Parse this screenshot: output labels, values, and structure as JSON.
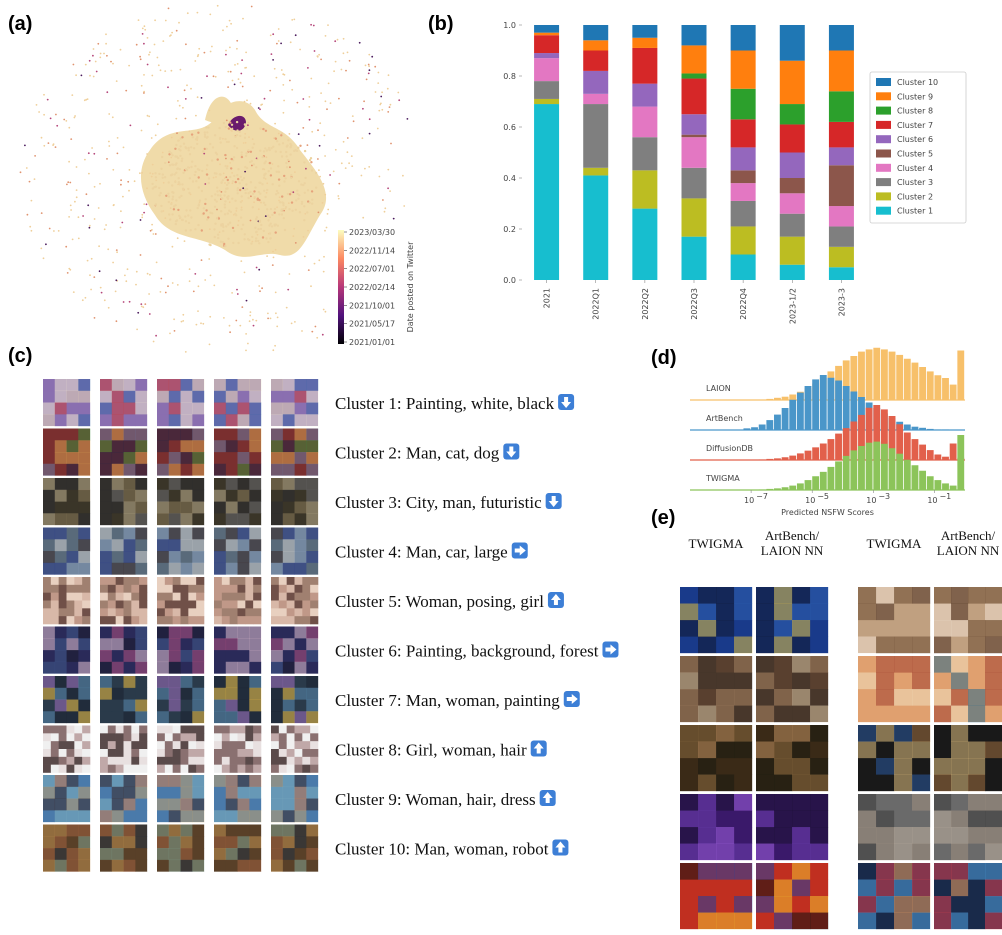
{
  "panel_labels": [
    "(a)",
    "(b)",
    "(c)",
    "(d)",
    "(e)"
  ],
  "embedding": {
    "colorbar": {
      "label": "Date posted on Twitter",
      "ticks": [
        "2023/03/30",
        "2022/11/14",
        "2022/07/01",
        "2022/02/14",
        "2021/10/01",
        "2021/05/17",
        "2021/01/01"
      ]
    }
  },
  "chart_data": [
    {
      "type": "stacked-bar",
      "categories": [
        "2021",
        "2022Q1",
        "2022Q2",
        "2022Q3",
        "2022Q4",
        "2023-1/2",
        "2023-3"
      ],
      "ylim": [
        0,
        1
      ],
      "yticks": [
        {
          "value": 0,
          "label": "0.0"
        },
        0.2,
        0.4,
        0.6,
        0.8,
        {
          "value": 1,
          "label": "1.0"
        }
      ],
      "legend": "right",
      "series": [
        {
          "name": "Cluster 1",
          "color": "#17becf",
          "values": [
            0.69,
            0.41,
            0.28,
            0.17,
            0.1,
            0.06,
            0.05
          ]
        },
        {
          "name": "Cluster 2",
          "color": "#bcbd22",
          "values": [
            0.02,
            0.03,
            0.15,
            0.15,
            0.11,
            0.11,
            0.08
          ]
        },
        {
          "name": "Cluster 3",
          "color": "#7f7f7f",
          "values": [
            0.07,
            0.25,
            0.13,
            0.12,
            0.1,
            0.09,
            0.08
          ]
        },
        {
          "name": "Cluster 4",
          "color": "#e377c2",
          "values": [
            0.09,
            0.04,
            0.12,
            0.12,
            0.07,
            0.08,
            0.08
          ]
        },
        {
          "name": "Cluster 5",
          "color": "#8c564b",
          "values": [
            0,
            0,
            0,
            0.01,
            0.05,
            0.06,
            0.16
          ]
        },
        {
          "name": "Cluster 6",
          "color": "#9467bd",
          "values": [
            0.02,
            0.09,
            0.09,
            0.08,
            0.09,
            0.1,
            0.07
          ]
        },
        {
          "name": "Cluster 7",
          "color": "#d62728",
          "values": [
            0.07,
            0.08,
            0.14,
            0.14,
            0.11,
            0.11,
            0.1
          ]
        },
        {
          "name": "Cluster 8",
          "color": "#2ca02c",
          "values": [
            0,
            0,
            0,
            0.02,
            0.12,
            0.08,
            0.12
          ]
        },
        {
          "name": "Cluster 9",
          "color": "#ff7f0e",
          "values": [
            0.01,
            0.04,
            0.04,
            0.11,
            0.15,
            0.17,
            0.16
          ]
        },
        {
          "name": "Cluster 10",
          "color": "#1f77b4",
          "values": [
            0.03,
            0.06,
            0.05,
            0.08,
            0.1,
            0.14,
            0.1
          ]
        }
      ]
    },
    {
      "type": "histogram",
      "xlabel": "Predicted NSFW Scores",
      "xscale": "log",
      "xlim": [
        1e-09,
        1
      ],
      "xticks": [
        {
          "value": 1e-07,
          "label": "10",
          "exponent": "−7"
        },
        {
          "value": 1e-05,
          "label": "10",
          "exponent": "−5"
        },
        {
          "value": 0.001,
          "label": "10",
          "exponent": "−3"
        },
        {
          "value": 0.1,
          "label": "10",
          "exponent": "−1"
        }
      ],
      "bins": [
        1e-08,
        1.778e-08,
        3.162e-08,
        5.623e-08,
        1e-07,
        1.778e-07,
        3.162e-07,
        5.623e-07,
        1e-06,
        1.778e-06,
        3.162e-06,
        5.623e-06,
        1e-05,
        1.778e-05,
        3.162e-05,
        5.623e-05,
        0.0001,
        0.0001778,
        0.0003162,
        0.0005623,
        0.001,
        0.001778,
        0.003162,
        0.005623,
        0.01,
        0.01778,
        0.03162,
        0.05623,
        0.1,
        0.1778,
        0.3162,
        0.5623,
        1
      ],
      "series": [
        {
          "name": "LAION",
          "color": "#f7c06a",
          "values": [
            0,
            0,
            0,
            0,
            0,
            0,
            2,
            4,
            6,
            10,
            15,
            22,
            30,
            40,
            52,
            62,
            72,
            80,
            88,
            92,
            95,
            92,
            88,
            82,
            75,
            68,
            60,
            52,
            45,
            40,
            28,
            90
          ]
        },
        {
          "name": "ArtBench",
          "color": "#4a96c9",
          "values": [
            0,
            0,
            0,
            3,
            5,
            10,
            18,
            28,
            40,
            55,
            68,
            80,
            92,
            100,
            95,
            90,
            80,
            70,
            60,
            50,
            40,
            30,
            22,
            15,
            10,
            6,
            4,
            2,
            1,
            1,
            0,
            0
          ]
        },
        {
          "name": "DiffusionDB",
          "color": "#e2604b",
          "values": [
            0,
            0,
            0,
            0,
            0,
            1,
            2,
            3,
            5,
            8,
            12,
            17,
            23,
            30,
            38,
            48,
            58,
            70,
            82,
            95,
            100,
            92,
            80,
            65,
            50,
            38,
            28,
            18,
            10,
            6,
            30,
            4
          ]
        },
        {
          "name": "TWIGMA",
          "color": "#8cc45a",
          "values": [
            0,
            0,
            0,
            0,
            0,
            1,
            2,
            3,
            5,
            8,
            12,
            18,
            25,
            33,
            42,
            52,
            62,
            72,
            80,
            86,
            88,
            84,
            76,
            66,
            55,
            45,
            35,
            25,
            18,
            12,
            8,
            100
          ]
        }
      ]
    }
  ],
  "clusters": [
    "Cluster 1: Painting, white, black",
    "Cluster 2: Man, cat, dog",
    "Cluster 3: City, man, futuristic",
    "Cluster 4: Man, car, large",
    "Cluster 5: Woman, posing, girl",
    "Cluster 6: Painting, background, forest",
    "Cluster 7: Man, woman, painting",
    "Cluster 8: Girl, woman, hair",
    "Cluster 9: Woman, hair, dress",
    "Cluster 10: Man, woman, robot"
  ],
  "comparison": {
    "headers": [
      [
        "TWIGMA"
      ],
      [
        "ArtBench/",
        "LAION NN"
      ],
      [
        "TWIGMA"
      ],
      [
        "ArtBench/",
        "LAION NN"
      ]
    ]
  }
}
